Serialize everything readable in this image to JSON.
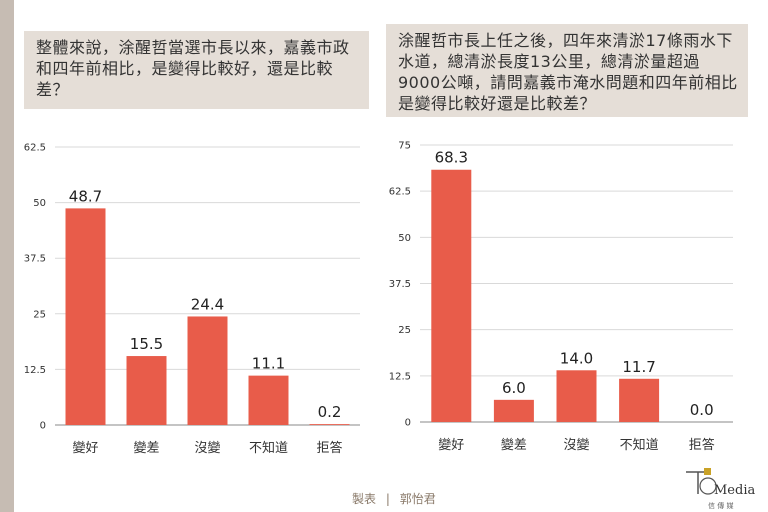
{
  "questions": {
    "q1": "整體來說，涂醒哲當選市長以來，嘉義市政和四年前相比，是變得比較好，還是比較差？",
    "q2": "涂醒哲市長上任之後，四年來清淤17條雨水下水道，總清淤長度13公里，總清淤量超過9000公噸，請問嘉義市淹水問題和四年前相比是變得比較好還是比較差？"
  },
  "footer": {
    "label": "製表",
    "separator": "|",
    "author": "郭怡君"
  },
  "logo": {
    "text": "Media",
    "sub": "信 傳 媒"
  },
  "colors": {
    "bar": "#e85c4a",
    "grid": "#d9d9d9",
    "axis": "#888888"
  },
  "chart_data": [
    {
      "type": "bar",
      "categories": [
        "變好",
        "變差",
        "沒變",
        "不知道",
        "拒答"
      ],
      "values": [
        48.7,
        15.5,
        24.4,
        11.1,
        0.2
      ],
      "data_labels": [
        "48.7",
        "15.5",
        "24.4",
        "11.1",
        "0.2"
      ],
      "ylim": [
        0,
        62.5
      ],
      "yticks": [
        0,
        12.5,
        25,
        37.5,
        50,
        62.5
      ],
      "ytick_labels": [
        "0",
        "12.5",
        "25",
        "37.5",
        "50",
        "62.5"
      ],
      "grid": true
    },
    {
      "type": "bar",
      "categories": [
        "變好",
        "變差",
        "沒變",
        "不知道",
        "拒答"
      ],
      "values": [
        68.3,
        6.0,
        14.0,
        11.7,
        0.0
      ],
      "data_labels": [
        "68.3",
        "6.0",
        "14.0",
        "11.7",
        "0.0"
      ],
      "ylim": [
        0,
        75
      ],
      "yticks": [
        0,
        12.5,
        25,
        37.5,
        50,
        62.5,
        75
      ],
      "ytick_labels": [
        "0",
        "12.5",
        "25",
        "37.5",
        "50",
        "62.5",
        "75"
      ],
      "grid": true
    }
  ]
}
